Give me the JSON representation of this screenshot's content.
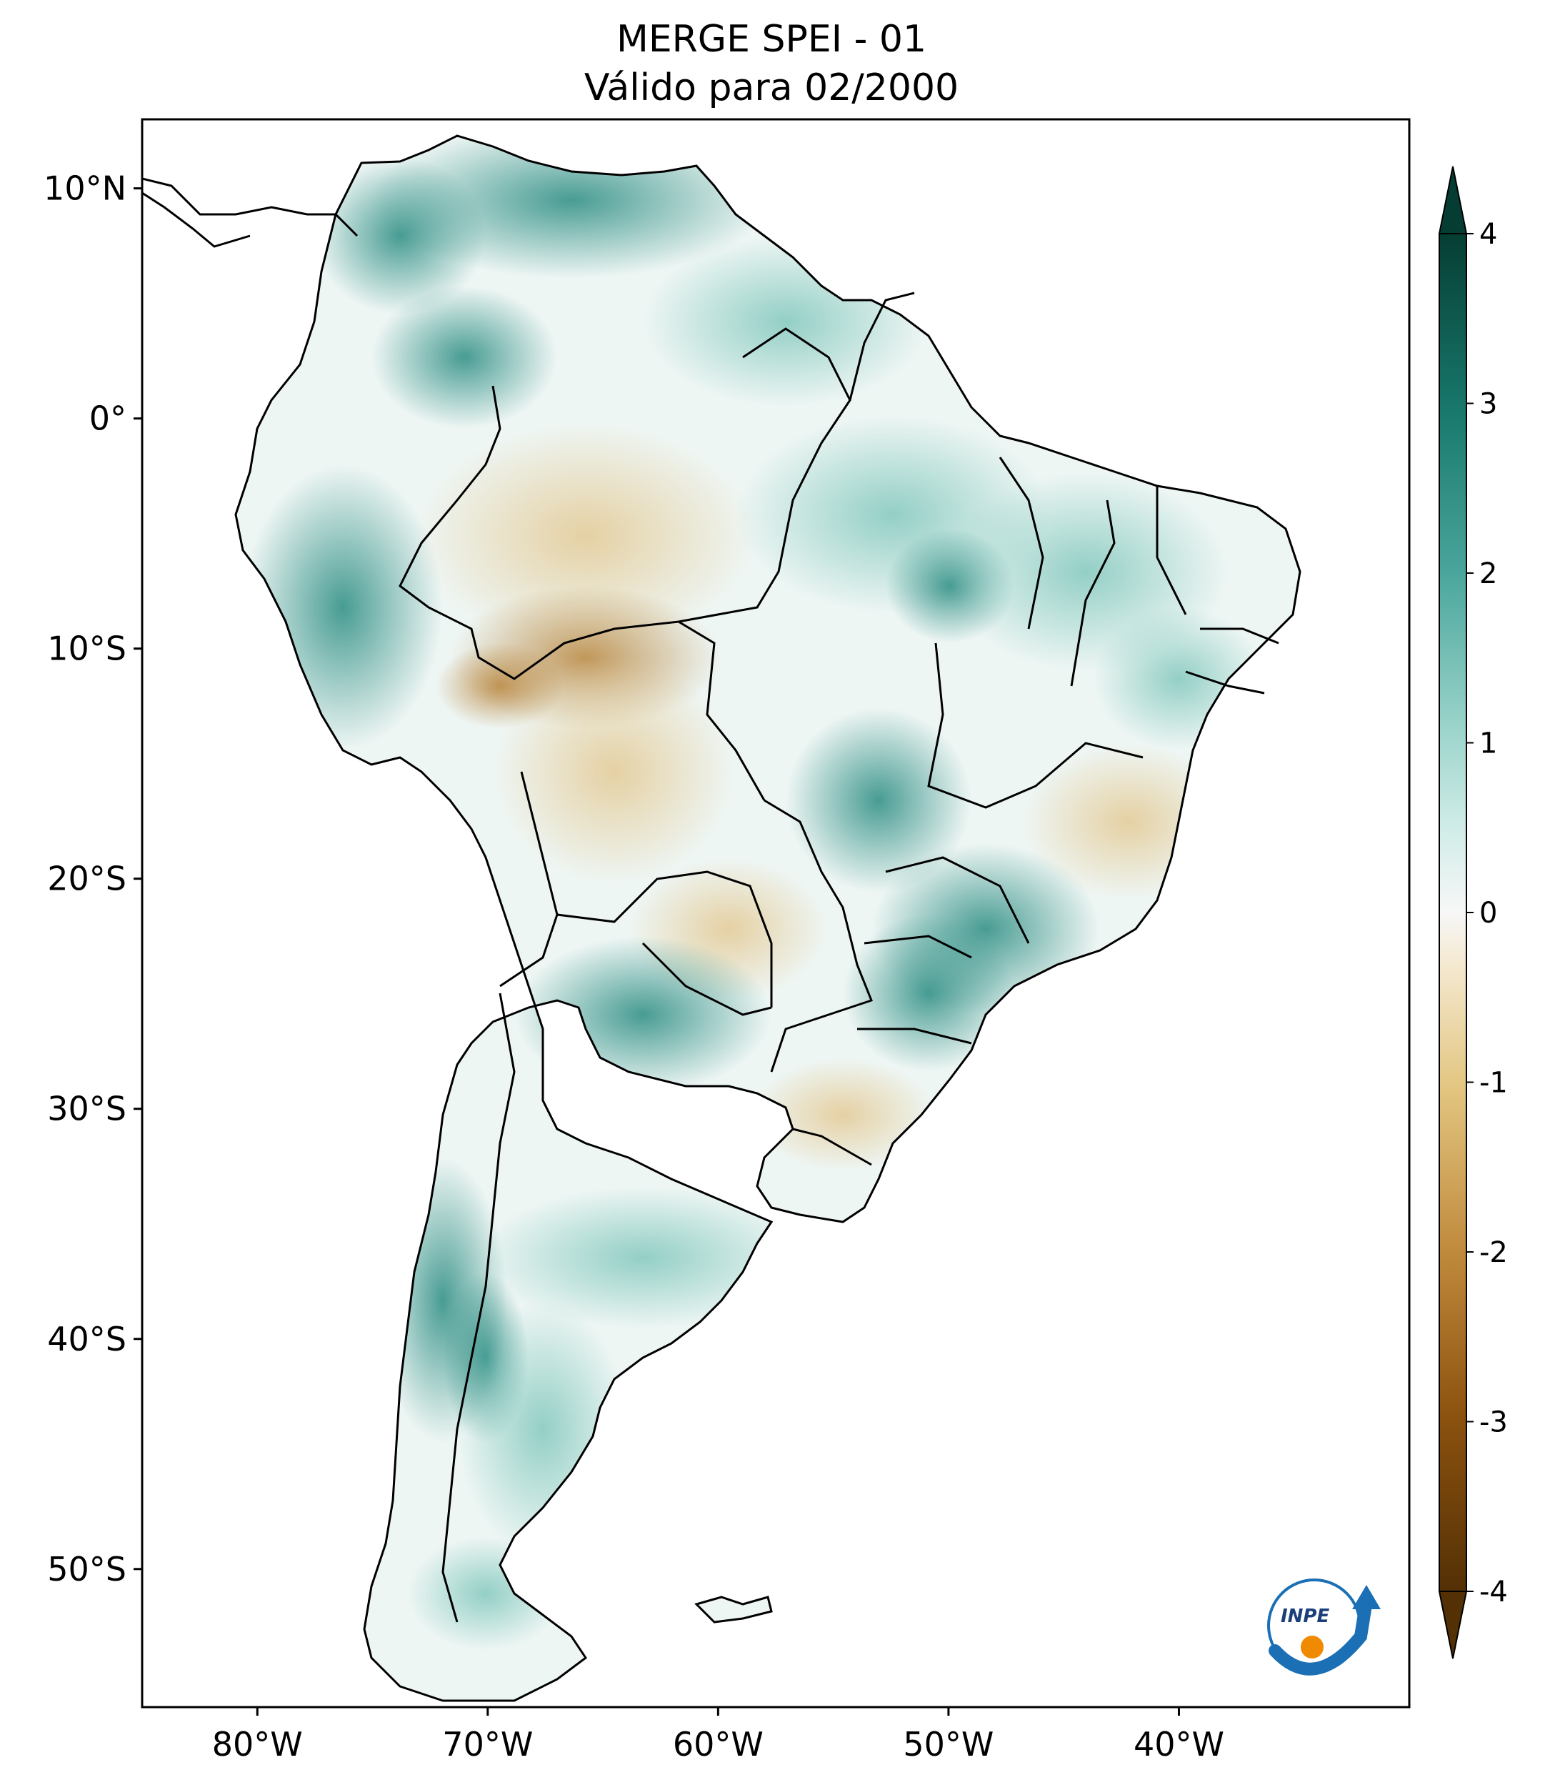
{
  "title": {
    "line1": "MERGE   SPEI - 01",
    "line2": "Válido para 02/2000"
  },
  "map": {
    "region": "South America",
    "lat_ticks": [
      {
        "label": "10°N",
        "value": 10
      },
      {
        "label": "0°",
        "value": 0
      },
      {
        "label": "10°S",
        "value": -10
      },
      {
        "label": "20°S",
        "value": -20
      },
      {
        "label": "30°S",
        "value": -30
      },
      {
        "label": "40°S",
        "value": -40
      },
      {
        "label": "50°S",
        "value": -50
      }
    ],
    "lon_ticks": [
      {
        "label": "80°W",
        "value": -80
      },
      {
        "label": "70°W",
        "value": -70
      },
      {
        "label": "60°W",
        "value": -60
      },
      {
        "label": "50°W",
        "value": -50
      },
      {
        "label": "40°W",
        "value": -40
      }
    ],
    "lon_range": [
      -85,
      -30
    ],
    "lat_range": [
      -56,
      13
    ]
  },
  "colorbar": {
    "ticks": [
      {
        "label": "4",
        "value": 4
      },
      {
        "label": "3",
        "value": 3
      },
      {
        "label": "2",
        "value": 2
      },
      {
        "label": "1",
        "value": 1
      },
      {
        "label": "0",
        "value": 0
      },
      {
        "label": "-1",
        "value": -1
      },
      {
        "label": "-2",
        "value": -2
      },
      {
        "label": "-3",
        "value": -3
      },
      {
        "label": "-4",
        "value": -4
      }
    ],
    "range": [
      -4,
      4
    ],
    "colors": {
      "wet_max": "#0b4a3f",
      "wet": "#2a8c82",
      "wet_light": "#9fd6cd",
      "neutral": "#f7f7f7",
      "dry_light": "#ead4a4",
      "dry": "#c08a3c",
      "dry_max": "#543005"
    }
  },
  "logo": {
    "text": "INPE",
    "colors": {
      "blue": "#1a6fb5",
      "orange": "#f08a00"
    }
  }
}
